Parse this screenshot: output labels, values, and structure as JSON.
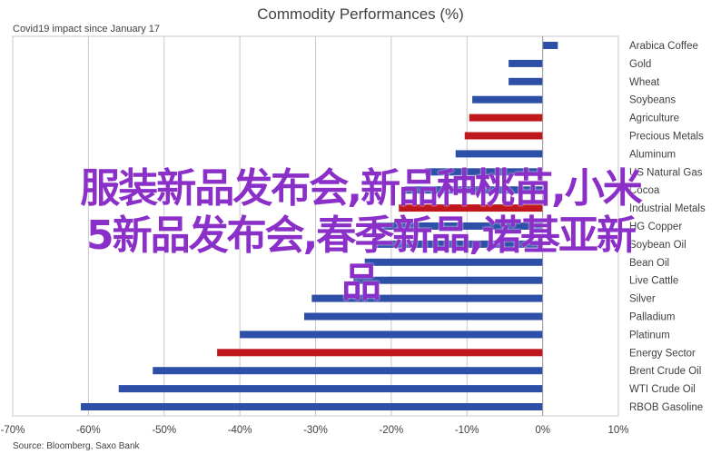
{
  "chart_data": {
    "type": "bar",
    "orientation": "horizontal",
    "title": "Commodity Performances (%)",
    "subtitle": "Covid19 impact since January 17",
    "source": "Source: Bloomberg, Saxo Bank",
    "xlim": [
      -70,
      10
    ],
    "xticks": [
      "-70%",
      "-60%",
      "-50%",
      "-40%",
      "-30%",
      "-20%",
      "-10%",
      "0%",
      "10%"
    ],
    "grid": "vertical",
    "colors": {
      "default": "#2e4fa8",
      "highlight": "#c0171c"
    },
    "categories": [
      "Arabica Coffee",
      "Gold",
      "Wheat",
      "Soybeans",
      "Agriculture",
      "Precious Metals",
      "Aluminum",
      "US Natural Gas",
      "Cocoa",
      "Industrial Metals",
      "HG Copper",
      "Soybean Oil",
      "Bean Oil",
      "Live Cattle",
      "Silver",
      "Palladium",
      "Platinum",
      "Energy Sector",
      "Brent Crude Oil",
      "WTI Crude Oil",
      "RBOB Gasoline"
    ],
    "values": [
      2,
      -4.5,
      -4.5,
      -9.3,
      -9.7,
      -10.3,
      -11.5,
      -15.5,
      -18.2,
      -19,
      -22,
      -22.5,
      -23.5,
      -25,
      -30.5,
      -31.5,
      -40,
      -43,
      -51.5,
      -56,
      -61
    ],
    "highlighted": [
      "Agriculture",
      "Precious Metals",
      "Industrial Metals",
      "Energy Sector"
    ]
  },
  "overlay": {
    "lines": [
      "服装新品发布会,新品种桃苗,小米",
      "5新品发布会,春季新品,诺基亚新",
      "品"
    ],
    "color": "#8b2fc9"
  }
}
